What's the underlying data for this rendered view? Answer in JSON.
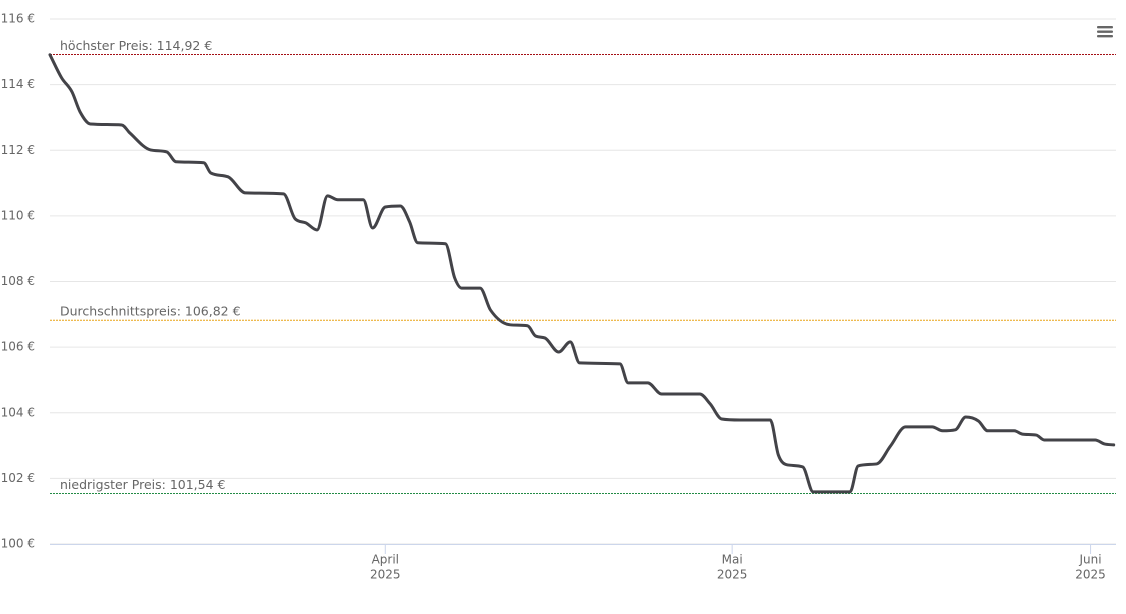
{
  "chart_data": {
    "type": "line",
    "x": [
      0,
      1.0,
      1.9,
      2.6,
      3.5,
      6.2,
      6.9,
      8.7,
      10.1,
      10.9,
      13.3,
      13.9,
      15.4,
      16.9,
      20.2,
      21.2,
      22.1,
      23.1,
      24.0,
      24.9,
      27.1,
      27.9,
      29.0,
      30.3,
      31.1,
      31.8,
      34.2,
      35.0,
      35.6,
      37.2,
      38.1,
      39.8,
      41.3,
      42.0,
      42.8,
      44.0,
      45.0,
      45.8,
      49.3,
      50.0,
      51.7,
      52.9,
      56.2,
      57.1,
      58.1,
      59.7,
      62.3,
      63.0,
      63.8,
      65.1,
      66.0,
      69.2,
      69.9,
      71.5,
      72.7,
      74.0,
      76.3,
      77.2,
      78.3,
      79.2,
      80.3,
      81.1,
      83.4,
      84.1,
      85.3,
      86.0,
      90.4,
      91.2,
      92.0
    ],
    "series": [
      {
        "color": "#434348",
        "values": [
          114.91,
          114.21,
          113.78,
          113.17,
          112.8,
          112.77,
          112.53,
          112.01,
          111.95,
          111.65,
          111.62,
          111.31,
          111.19,
          110.7,
          110.67,
          109.91,
          109.79,
          109.57,
          110.61,
          110.49,
          110.49,
          109.63,
          110.27,
          110.3,
          109.82,
          109.18,
          109.15,
          108.11,
          107.8,
          107.8,
          107.13,
          106.68,
          106.65,
          106.34,
          106.28,
          105.85,
          106.16,
          105.52,
          105.49,
          104.91,
          104.91,
          104.57,
          104.57,
          104.27,
          103.81,
          103.78,
          103.78,
          102.71,
          102.41,
          102.35,
          101.59,
          101.59,
          102.38,
          102.44,
          102.99,
          103.57,
          103.57,
          103.45,
          103.48,
          103.87,
          103.75,
          103.45,
          103.45,
          103.35,
          103.32,
          103.17,
          103.17,
          103.05,
          103.02
        ]
      }
    ],
    "xlim": [
      0,
      92.2
    ],
    "xticks": [
      {
        "value": 29,
        "label": "April",
        "year": "2025"
      },
      {
        "value": 59,
        "label": "Mai",
        "year": "2025"
      },
      {
        "value": 90,
        "label": "Juni",
        "year": "2025"
      }
    ],
    "ylim": [
      100,
      116
    ],
    "yticks": [
      {
        "value": 100,
        "label": "100 €"
      },
      {
        "value": 102,
        "label": "102 €"
      },
      {
        "value": 104,
        "label": "104 €"
      },
      {
        "value": 106,
        "label": "106 €"
      },
      {
        "value": 108,
        "label": "108 €"
      },
      {
        "value": 110,
        "label": "110 €"
      },
      {
        "value": 112,
        "label": "112 €"
      },
      {
        "value": 114,
        "label": "114 €"
      },
      {
        "value": 116,
        "label": "116 €"
      }
    ],
    "grid": true,
    "plot_lines": [
      {
        "label": "höchster Preis: 114,92 €",
        "value": 114.92,
        "color": "#a50f15"
      },
      {
        "label": "Durchschnittspreis: 106,82 €",
        "value": 106.82,
        "color": "#e8a317"
      },
      {
        "label": "niedrigster Preis: 101,54 €",
        "value": 101.54,
        "color": "#238b45"
      }
    ]
  }
}
